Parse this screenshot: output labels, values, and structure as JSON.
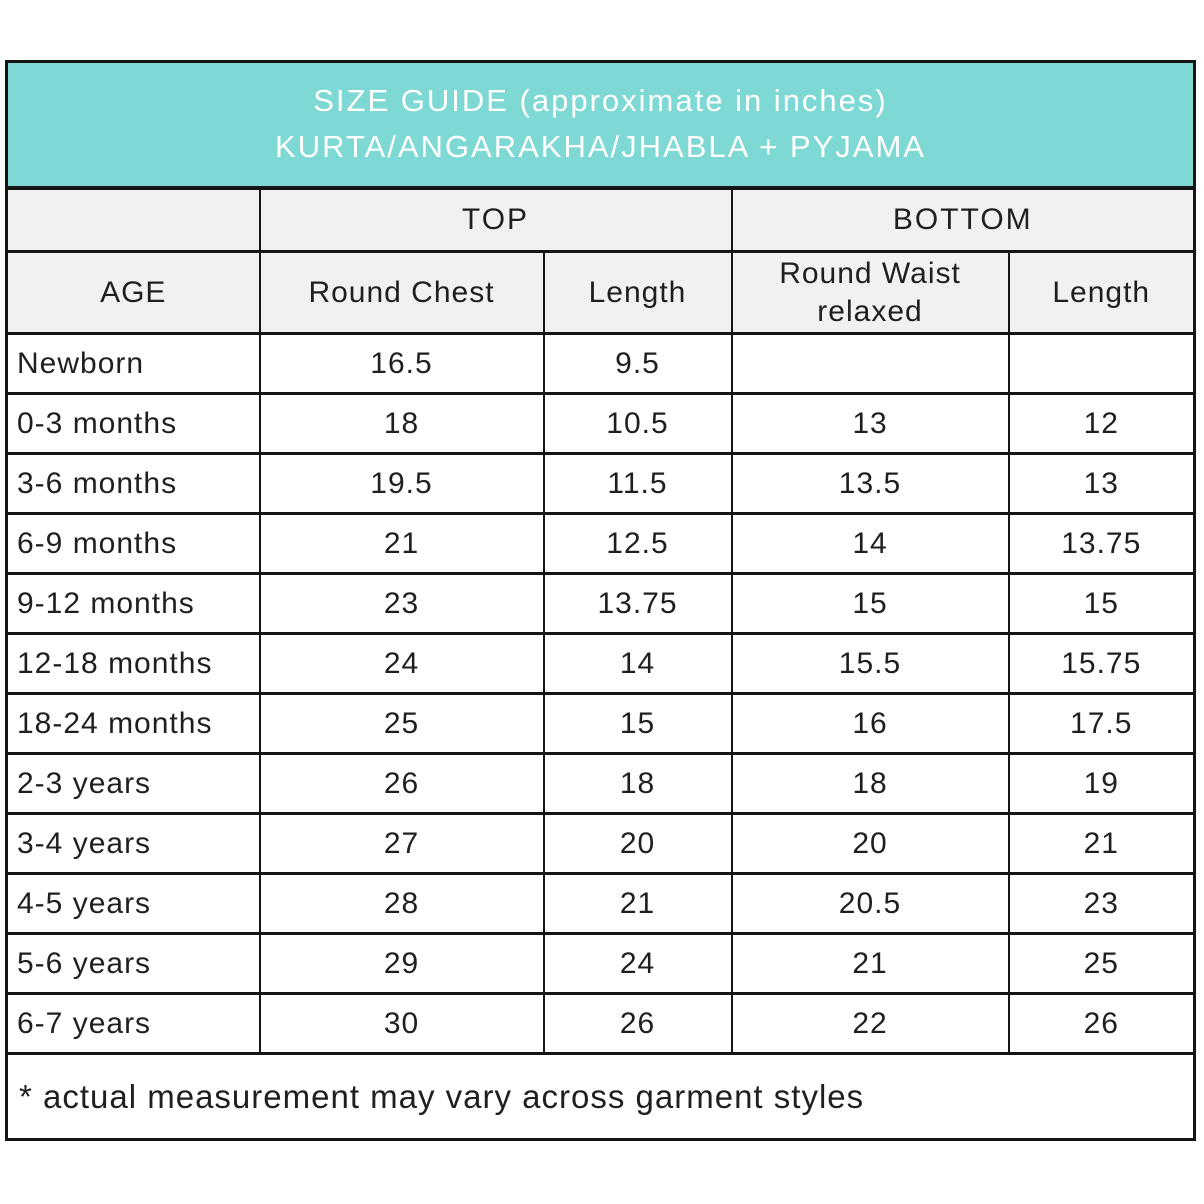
{
  "title": {
    "line1": "SIZE GUIDE (approximate in inches)",
    "line2": "KURTA/ANGARAKHA/JHABLA + PYJAMA"
  },
  "colors": {
    "header_fill": "#7ed8d4",
    "subheader_fill": "#f1f1f1",
    "border": "#151515",
    "title_text": "#ffffff",
    "body_text": "#1f1f1f"
  },
  "chart_data": {
    "type": "table",
    "title": "SIZE GUIDE (approximate in inches) KURTA/ANGARAKHA/JHABLA + PYJAMA",
    "group_headers": [
      {
        "label": "TOP",
        "span": 2
      },
      {
        "label": "BOTTOM",
        "span": 2
      }
    ],
    "columns": [
      "AGE",
      "Round Chest",
      "Length",
      "Round Waist relaxed",
      "Length"
    ],
    "rows": [
      {
        "cells": [
          "Newborn",
          "16.5",
          "9.5",
          "",
          ""
        ]
      },
      {
        "cells": [
          "0-3 months",
          "18",
          "10.5",
          "13",
          "12"
        ]
      },
      {
        "cells": [
          "3-6 months",
          "19.5",
          "11.5",
          "13.5",
          "13"
        ]
      },
      {
        "cells": [
          "6-9 months",
          "21",
          "12.5",
          "14",
          "13.75"
        ]
      },
      {
        "cells": [
          "9-12 months",
          "23",
          "13.75",
          "15",
          "15"
        ]
      },
      {
        "cells": [
          "12-18 months",
          "24",
          "14",
          "15.5",
          "15.75"
        ]
      },
      {
        "cells": [
          "18-24 months",
          "25",
          "15",
          "16",
          "17.5"
        ]
      },
      {
        "cells": [
          "2-3 years",
          "26",
          "18",
          "18",
          "19"
        ]
      },
      {
        "cells": [
          "3-4 years",
          "27",
          "20",
          "20",
          "21"
        ]
      },
      {
        "cells": [
          "4-5 years",
          "28",
          "21",
          "20.5",
          "23"
        ]
      },
      {
        "cells": [
          "5-6 years",
          "29",
          "24",
          "21",
          "25"
        ]
      },
      {
        "cells": [
          "6-7 years",
          "30",
          "26",
          "22",
          "26"
        ]
      }
    ],
    "footnote": "* actual measurement may vary across garment styles"
  }
}
